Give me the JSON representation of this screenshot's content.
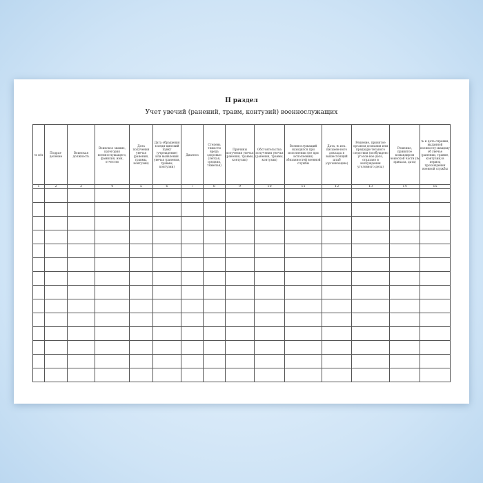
{
  "document": {
    "title": "II раздел",
    "subtitle": "Учет увечий (ранений, травм, контузий) военнослужащих",
    "columns": [
      "№ п/п",
      "Подраз-деление",
      "Воинская должность",
      "Воинское звание, категория военнослужащего, фамилия, имя, отчество",
      "Дата получения увечья (ранения, травмы, контузии)",
      "Дата обращения в меди-цинский пункт (учреждение) или выявления увечья (ранения, травмы, контузии)",
      "Диагноз",
      "Степень тяжести вреда здоровью (легкая, средняя, тяжелая)",
      "Причины получения увечья (ранения, травмы, контузии)",
      "Обстоятельства получения увечья (ранения, травмы, контузии)",
      "Военнослужащий находился при исполнении (не при исполнении) обязанностей военной службы",
      "Дата, № исх. письмен-ного доклада в вышестоящий штаб (организацию)",
      "Решение, принятое органом дознания или предвари-тельного следствия (возбуждено уголов-ное дело, отказано в возбуждении уголовного дела)",
      "Решение, принятое командиром воинской части (№ приказа, дата)",
      "№ и дата справки, выданной военнослу-жащему об увечье (ранении, травме, контузии) в период прохождения военной службы"
    ],
    "column_numbers": [
      "1",
      "2",
      "3",
      "4",
      "5",
      "6",
      "7",
      "8",
      "9",
      "10",
      "11",
      "12",
      "13",
      "14",
      "15"
    ],
    "empty_rows": 14
  }
}
